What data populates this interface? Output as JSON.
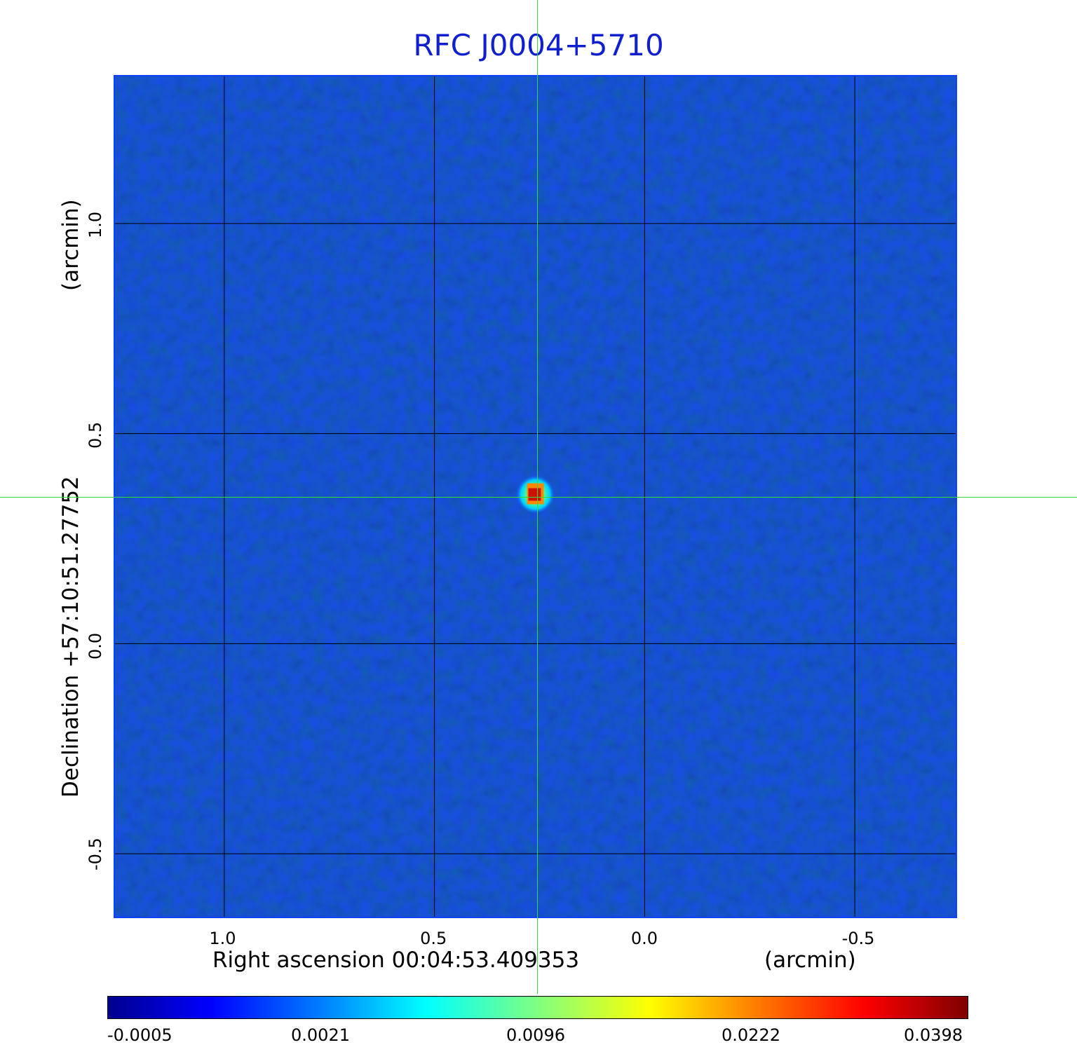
{
  "chart_data": {
    "type": "heatmap",
    "title": "RFC J0004+5710",
    "xlabel": "Right ascension  00:04:53.409353",
    "xunit": "(arcmin)",
    "ylabel": "Declination  +57:10:51.27752",
    "yunit": "(arcmin)",
    "xlim": [
      1.26,
      -0.74
    ],
    "ylim": [
      -0.65,
      1.35
    ],
    "x_ticks": [
      "1.0",
      "0.5",
      "0.0",
      "-0.5"
    ],
    "x_tick_values": [
      1.0,
      0.5,
      0.0,
      -0.5
    ],
    "y_ticks": [
      "1.0",
      "0.5",
      "0.0",
      "-0.5"
    ],
    "y_tick_values": [
      1.0,
      0.5,
      0.0,
      -0.5
    ],
    "grid": true,
    "source": {
      "x": 0.26,
      "y": 0.355,
      "peak": 0.0398
    },
    "crosshair": {
      "x": 0.26,
      "y": 0.355
    },
    "colormap": "jet",
    "colorbar_ticks": [
      "-0.0005",
      "0.0021",
      "0.0096",
      "0.0222",
      "0.0398"
    ],
    "colorbar_range": [
      -0.0005,
      0.0398
    ]
  }
}
